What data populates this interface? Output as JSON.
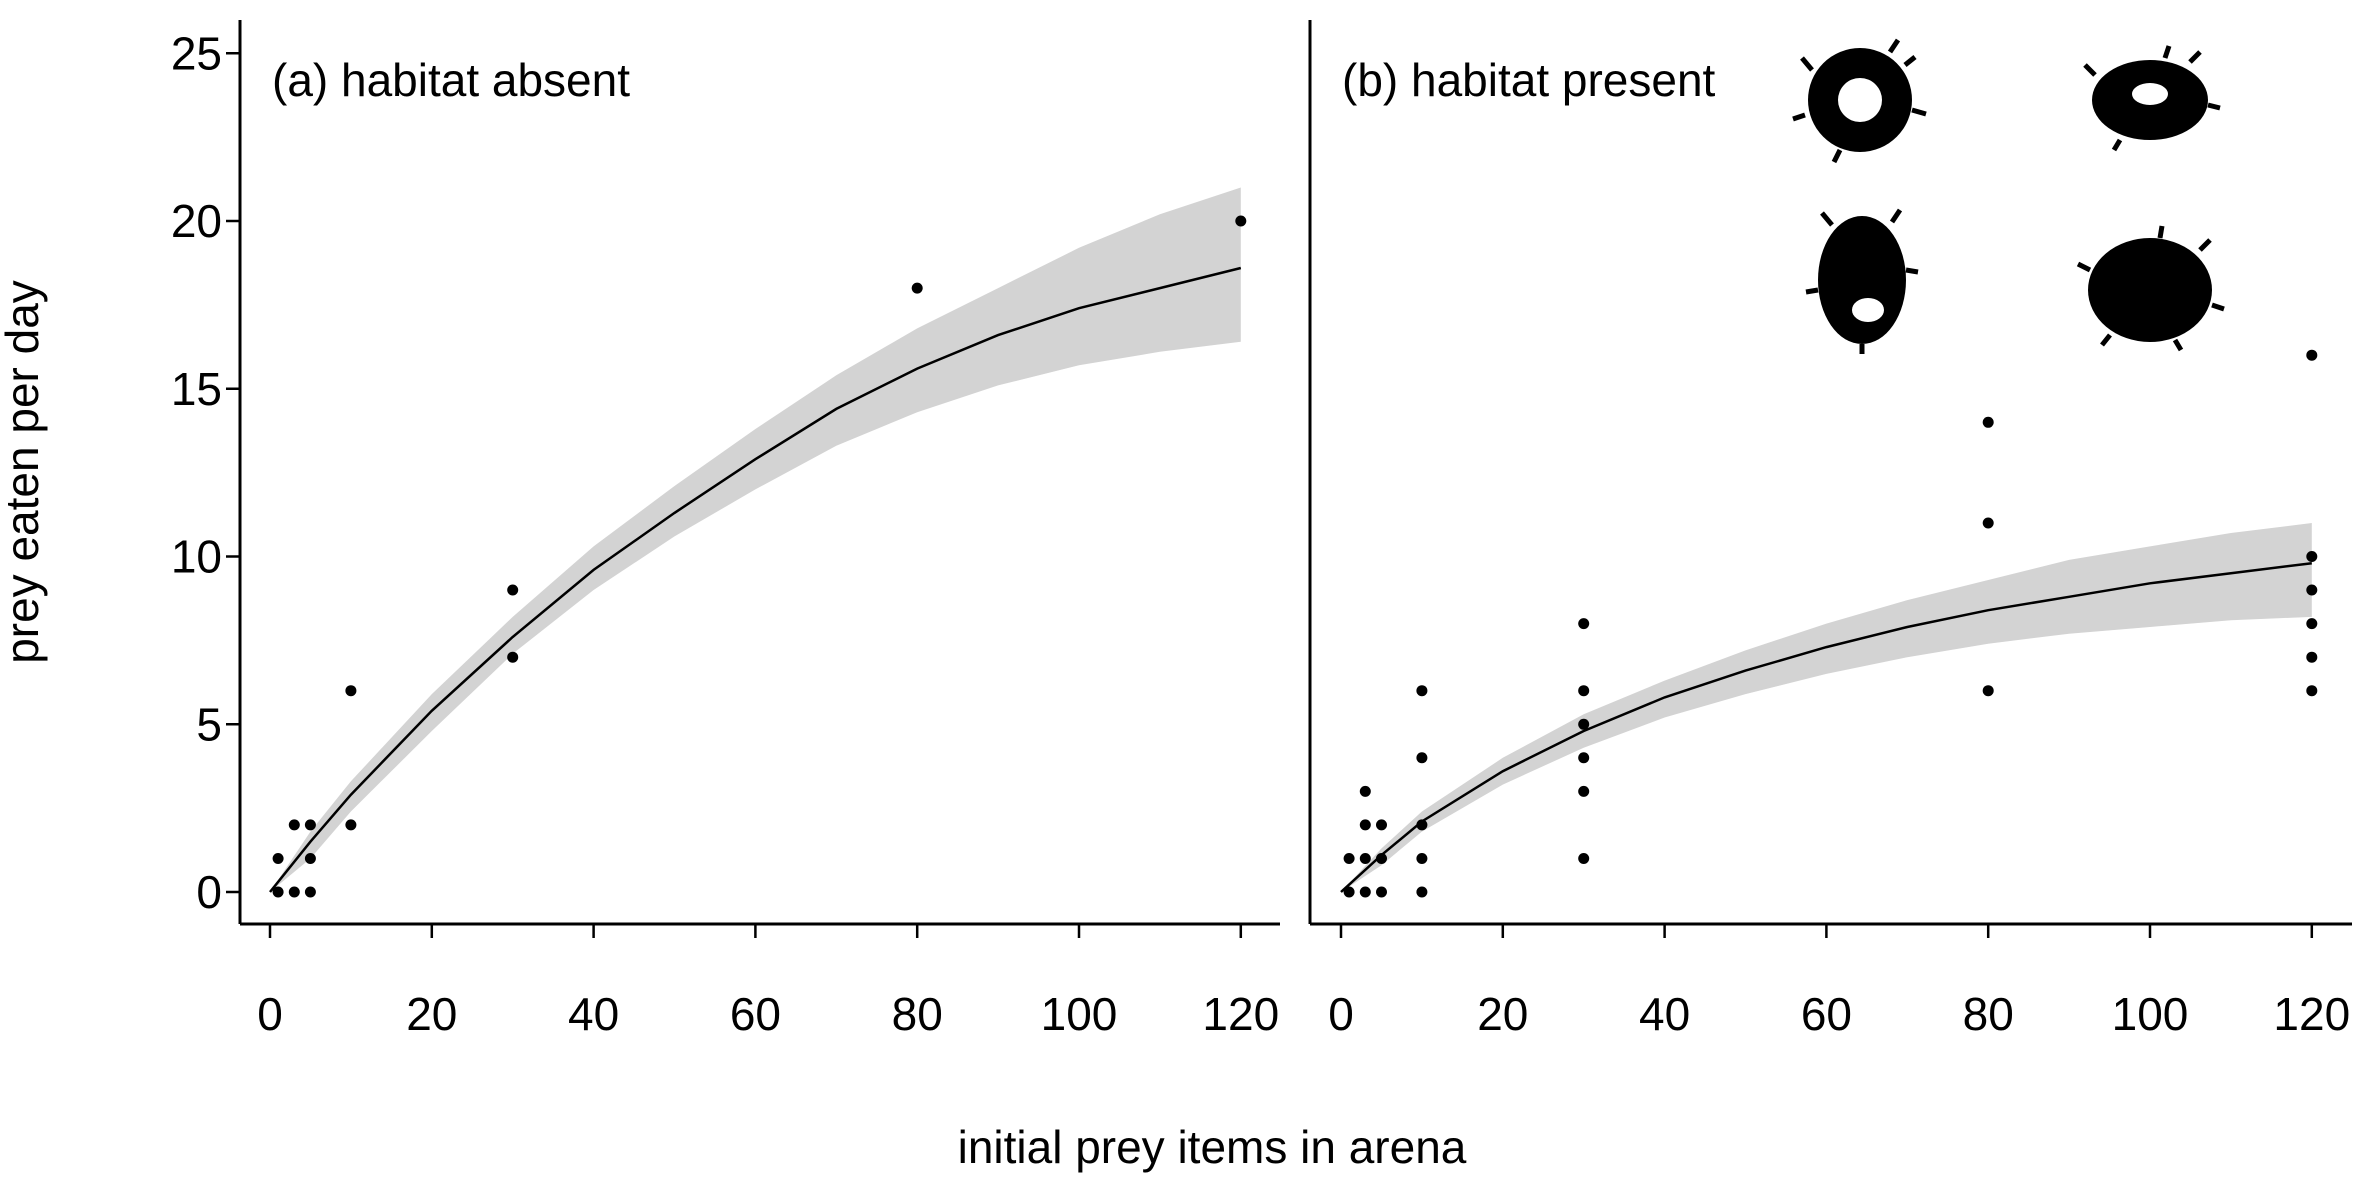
{
  "figure": {
    "xlabel": "initial prey items in arena",
    "ylabel": "prey eaten per day"
  },
  "chart_data": [
    {
      "type": "scatter",
      "panel": "a",
      "title": "(a) habitat absent",
      "xlim": [
        0,
        125
      ],
      "ylim": [
        0,
        26
      ],
      "xticks": [
        0,
        20,
        40,
        60,
        80,
        100,
        120
      ],
      "yticks": [
        0,
        5,
        10,
        15,
        20,
        25
      ],
      "points": [
        {
          "x": 1,
          "y": 1
        },
        {
          "x": 1,
          "y": 0
        },
        {
          "x": 3,
          "y": 2
        },
        {
          "x": 3,
          "y": 0
        },
        {
          "x": 5,
          "y": 2
        },
        {
          "x": 5,
          "y": 1
        },
        {
          "x": 5,
          "y": 0
        },
        {
          "x": 10,
          "y": 6
        },
        {
          "x": 10,
          "y": 2
        },
        {
          "x": 30,
          "y": 9
        },
        {
          "x": 30,
          "y": 7
        },
        {
          "x": 80,
          "y": 18
        },
        {
          "x": 120,
          "y": 20
        }
      ],
      "fit": {
        "x": [
          0,
          5,
          10,
          20,
          30,
          40,
          50,
          60,
          70,
          80,
          90,
          100,
          110,
          120
        ],
        "y": [
          0,
          1.5,
          2.9,
          5.4,
          7.6,
          9.6,
          11.3,
          12.9,
          14.4,
          15.6,
          16.6,
          17.4,
          18.0,
          18.6
        ],
        "lower": [
          0,
          1.0,
          2.4,
          4.8,
          7.1,
          9.0,
          10.6,
          12.0,
          13.3,
          14.3,
          15.1,
          15.7,
          16.1,
          16.4
        ],
        "upper": [
          0,
          1.8,
          3.3,
          5.9,
          8.2,
          10.3,
          12.1,
          13.8,
          15.4,
          16.8,
          18.0,
          19.2,
          20.2,
          21.0
        ]
      }
    },
    {
      "type": "scatter",
      "panel": "b",
      "title": "(b) habitat present",
      "xlim": [
        0,
        125
      ],
      "ylim": [
        0,
        26
      ],
      "xticks": [
        0,
        20,
        40,
        60,
        80,
        100,
        120
      ],
      "yticks": [
        0,
        5,
        10,
        15,
        20,
        25
      ],
      "points": [
        {
          "x": 1,
          "y": 1
        },
        {
          "x": 1,
          "y": 0
        },
        {
          "x": 3,
          "y": 3
        },
        {
          "x": 3,
          "y": 2
        },
        {
          "x": 3,
          "y": 1
        },
        {
          "x": 3,
          "y": 0
        },
        {
          "x": 5,
          "y": 2
        },
        {
          "x": 5,
          "y": 1
        },
        {
          "x": 5,
          "y": 0
        },
        {
          "x": 10,
          "y": 6
        },
        {
          "x": 10,
          "y": 4
        },
        {
          "x": 10,
          "y": 2
        },
        {
          "x": 10,
          "y": 1
        },
        {
          "x": 10,
          "y": 0
        },
        {
          "x": 30,
          "y": 8
        },
        {
          "x": 30,
          "y": 6
        },
        {
          "x": 30,
          "y": 5
        },
        {
          "x": 30,
          "y": 4
        },
        {
          "x": 30,
          "y": 3
        },
        {
          "x": 30,
          "y": 1
        },
        {
          "x": 80,
          "y": 14
        },
        {
          "x": 80,
          "y": 11
        },
        {
          "x": 80,
          "y": 6
        },
        {
          "x": 120,
          "y": 16
        },
        {
          "x": 120,
          "y": 10
        },
        {
          "x": 120,
          "y": 9
        },
        {
          "x": 120,
          "y": 8
        },
        {
          "x": 120,
          "y": 7
        },
        {
          "x": 120,
          "y": 6
        }
      ],
      "fit": {
        "x": [
          0,
          5,
          10,
          20,
          30,
          40,
          50,
          60,
          70,
          80,
          90,
          100,
          110,
          120
        ],
        "y": [
          0,
          1.1,
          2.1,
          3.6,
          4.8,
          5.8,
          6.6,
          7.3,
          7.9,
          8.4,
          8.8,
          9.2,
          9.5,
          9.8
        ],
        "lower": [
          0,
          0.8,
          1.8,
          3.2,
          4.3,
          5.2,
          5.9,
          6.5,
          7.0,
          7.4,
          7.7,
          7.9,
          8.1,
          8.2
        ],
        "upper": [
          0,
          1.3,
          2.4,
          4.0,
          5.3,
          6.3,
          7.2,
          8.0,
          8.7,
          9.3,
          9.9,
          10.3,
          10.7,
          11.0
        ]
      }
    }
  ]
}
